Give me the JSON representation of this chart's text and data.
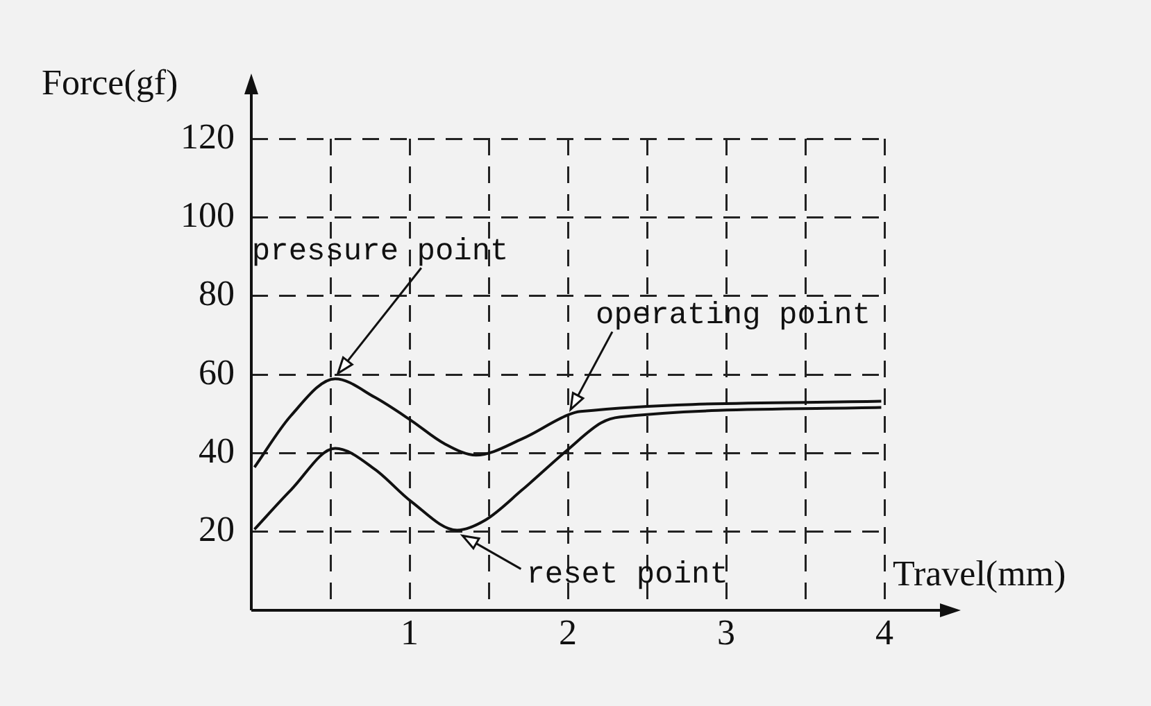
{
  "chart_data": {
    "type": "line",
    "xlabel": "Travel(mm)",
    "ylabel": "Force(gf)",
    "xlim": [
      0,
      4
    ],
    "ylim": [
      0,
      120
    ],
    "xticks": [
      {
        "value": 0,
        "label": null
      },
      {
        "value": 0.5,
        "label": null
      },
      1,
      {
        "value": 1.5,
        "label": null
      },
      2,
      {
        "value": 2.5,
        "label": null
      },
      3,
      {
        "value": 3.5,
        "label": null
      },
      4
    ],
    "yticks": [
      20,
      40,
      60,
      80,
      100,
      120
    ],
    "grid": true,
    "legend": false,
    "marker": "none",
    "line_style": "solid",
    "series": [
      {
        "color": "#111111",
        "x": [
          0.02,
          0.25,
          0.53,
          0.78,
          1.01,
          1.22,
          1.42,
          1.71,
          2.0,
          2.08,
          3.98
        ],
        "values": [
          36.4,
          49.5,
          58.9,
          54.2,
          48.3,
          42.4,
          39.5,
          43.6,
          49.7,
          50.6,
          53.2
        ]
      },
      {
        "color": "#111111",
        "x": [
          0.02,
          0.25,
          0.53,
          0.78,
          1.01,
          1.3,
          1.48,
          1.71,
          2.0,
          2.21,
          2.33,
          3.98
        ],
        "values": [
          20.6,
          30.6,
          41.2,
          35.9,
          27.7,
          20.4,
          23.0,
          30.6,
          40.9,
          47.7,
          49.2,
          51.6
        ]
      }
    ],
    "annotations": [
      {
        "text": "pressure point",
        "x": 0.53,
        "y": 58.9
      },
      {
        "text": "operating point",
        "x": 2.0,
        "y": 49.7
      },
      {
        "text": "reset point",
        "x": 1.3,
        "y": 20.4
      }
    ]
  }
}
